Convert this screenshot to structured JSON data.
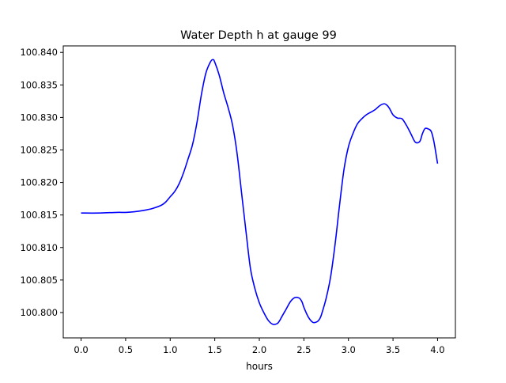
{
  "chart_data": {
    "type": "line",
    "title": "Water Depth h at gauge 99",
    "xlabel": "hours",
    "ylabel": "",
    "xlim": [
      -0.2,
      4.2
    ],
    "ylim": [
      100.7961,
      100.841
    ],
    "xticks": [
      0.0,
      0.5,
      1.0,
      1.5,
      2.0,
      2.5,
      3.0,
      3.5,
      4.0
    ],
    "xtick_labels": [
      "0.0",
      "0.5",
      "1.0",
      "1.5",
      "2.0",
      "2.5",
      "3.0",
      "3.5",
      "4.0"
    ],
    "yticks": [
      100.8,
      100.805,
      100.81,
      100.815,
      100.82,
      100.825,
      100.83,
      100.835,
      100.84
    ],
    "ytick_labels": [
      "100.800",
      "100.805",
      "100.810",
      "100.815",
      "100.820",
      "100.825",
      "100.830",
      "100.835",
      "100.840"
    ],
    "grid": false,
    "series": [
      {
        "color": "#0000ff",
        "x": [
          0.0,
          0.2,
          0.4,
          0.5,
          0.6,
          0.7,
          0.8,
          0.9,
          0.95,
          1.0,
          1.05,
          1.1,
          1.15,
          1.2,
          1.25,
          1.3,
          1.35,
          1.4,
          1.45,
          1.48,
          1.5,
          1.55,
          1.6,
          1.65,
          1.7,
          1.75,
          1.8,
          1.85,
          1.9,
          1.95,
          2.0,
          2.05,
          2.1,
          2.15,
          2.2,
          2.23,
          2.25,
          2.3,
          2.35,
          2.4,
          2.45,
          2.48,
          2.5,
          2.55,
          2.6,
          2.65,
          2.68,
          2.7,
          2.75,
          2.8,
          2.85,
          2.9,
          2.95,
          3.0,
          3.05,
          3.1,
          3.15,
          3.2,
          3.25,
          3.3,
          3.35,
          3.4,
          3.43,
          3.46,
          3.5,
          3.55,
          3.6,
          3.65,
          3.7,
          3.75,
          3.8,
          3.83,
          3.86,
          3.9,
          3.93,
          3.96,
          4.0
        ],
        "y": [
          100.8153,
          100.8153,
          100.8154,
          100.8154,
          100.8155,
          100.8157,
          100.816,
          100.8165,
          100.817,
          100.8178,
          100.8186,
          100.8198,
          100.8215,
          100.8236,
          100.8258,
          100.8292,
          100.8335,
          100.8368,
          100.8385,
          100.8389,
          100.8385,
          100.8365,
          100.8338,
          100.8315,
          100.8288,
          100.8245,
          100.8185,
          100.8125,
          100.8068,
          100.8037,
          100.8015,
          100.8,
          100.7988,
          100.7982,
          100.7983,
          100.7988,
          100.7993,
          100.8005,
          100.8017,
          100.8023,
          100.8022,
          100.8016,
          100.8008,
          100.7993,
          100.7985,
          100.7986,
          100.7991,
          100.7998,
          100.8022,
          100.8055,
          100.8105,
          100.8165,
          100.822,
          100.8255,
          100.8275,
          100.829,
          100.8298,
          100.8304,
          100.8308,
          100.8312,
          100.8318,
          100.8321,
          100.8319,
          100.8314,
          100.8304,
          100.8299,
          100.8298,
          100.8288,
          100.8275,
          100.8262,
          100.8263,
          100.8275,
          100.8283,
          100.8282,
          100.8278,
          100.8262,
          100.8229
        ]
      }
    ]
  }
}
